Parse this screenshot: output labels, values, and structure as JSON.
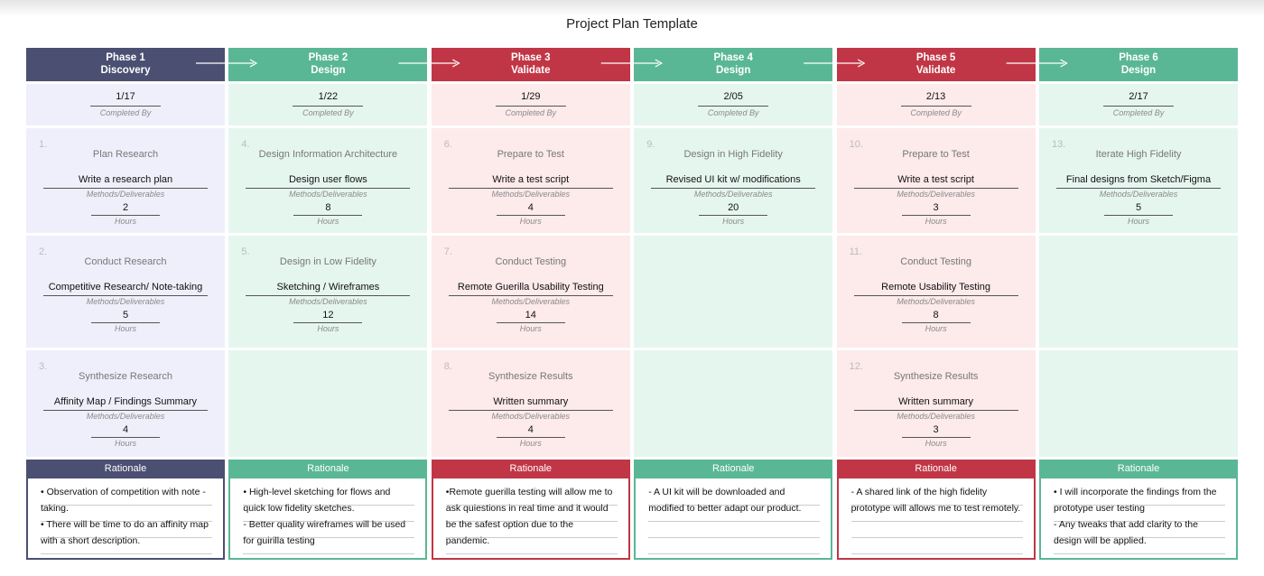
{
  "title": "Project Plan Template",
  "phases": [
    {
      "title": "Phase 1",
      "subtitle": "Discovery",
      "date": "1/17",
      "date_label": "Completed By",
      "tasks": [
        {
          "number": "1.",
          "name": "Plan Research",
          "deliverable": "Write a research plan",
          "deliverable_label": "Methods/Deliverables",
          "hours": 2,
          "hours_label": "Hours"
        },
        {
          "number": "2.",
          "name": "Conduct Research",
          "deliverable": "Competitive Research/ Note-taking",
          "deliverable_label": "Methods/Deliverables",
          "hours": 5,
          "hours_label": "Hours"
        },
        {
          "number": "3.",
          "name": "Synthesize Research",
          "deliverable": "Affinity Map / Findings Summary",
          "deliverable_label": "Methods/Deliverables",
          "hours": 4,
          "hours_label": "Hours"
        }
      ],
      "rationale_title": "Rationale",
      "rationale": [
        "• Observation of competition with note - taking.",
        "• There will be time to do an affinity map with a short description."
      ]
    },
    {
      "title": "Phase 2",
      "subtitle": "Design",
      "date": "1/22",
      "date_label": "Completed By",
      "tasks": [
        {
          "number": "4.",
          "name": "Design Information Architecture",
          "deliverable": "Design user flows",
          "deliverable_label": "Methods/Deliverables",
          "hours": 8,
          "hours_label": "Hours"
        },
        {
          "number": "5.",
          "name": "Design in Low Fidelity",
          "deliverable": "Sketching / Wireframes",
          "deliverable_label": "Methods/Deliverables",
          "hours": 12,
          "hours_label": "Hours"
        }
      ],
      "rationale_title": "Rationale",
      "rationale": [
        "• High-level sketching for flows and quick low fidelity sketches.",
        "- Better quality wireframes will be used for guirilla testing"
      ]
    },
    {
      "title": "Phase 3",
      "subtitle": "Validate",
      "date": "1/29",
      "date_label": "Completed By",
      "tasks": [
        {
          "number": "6.",
          "name": "Prepare to Test",
          "deliverable": "Write a test script",
          "deliverable_label": "Methods/Deliverables",
          "hours": 4,
          "hours_label": "Hours"
        },
        {
          "number": "7.",
          "name": "Conduct Testing",
          "deliverable": "Remote Guerilla Usability Testing",
          "deliverable_label": "Methods/Deliverables",
          "hours": 14,
          "hours_label": "Hours"
        },
        {
          "number": "8.",
          "name": "Synthesize Results",
          "deliverable": "Written summary",
          "deliverable_label": "Methods/Deliverables",
          "hours": 4,
          "hours_label": "Hours"
        }
      ],
      "rationale_title": "Rationale",
      "rationale": [
        "•Remote guerilla testing will allow me to ask quiestions in real time and it would be the safest option due to the pandemic."
      ]
    },
    {
      "title": "Phase 4",
      "subtitle": "Design",
      "date": "2/05",
      "date_label": "Completed By",
      "tasks": [
        {
          "number": "9.",
          "name": "Design in High Fidelity",
          "deliverable": "Revised UI kit w/ modifications",
          "deliverable_label": "Methods/Deliverables",
          "hours": 20,
          "hours_label": "Hours"
        }
      ],
      "rationale_title": "Rationale",
      "rationale": [
        "- A UI kit will be downloaded and modified to better adapt our product."
      ]
    },
    {
      "title": "Phase 5",
      "subtitle": "Validate",
      "date": "2/13",
      "date_label": "Completed By",
      "tasks": [
        {
          "number": "10.",
          "name": "Prepare to Test",
          "deliverable": "Write a test script",
          "deliverable_label": "Methods/Deliverables",
          "hours": 3,
          "hours_label": "Hours"
        },
        {
          "number": "11.",
          "name": "Conduct Testing",
          "deliverable": "Remote Usability Testing",
          "deliverable_label": "Methods/Deliverables",
          "hours": 8,
          "hours_label": "Hours"
        },
        {
          "number": "12.",
          "name": "Synthesize Results",
          "deliverable": "Written summary",
          "deliverable_label": "Methods/Deliverables",
          "hours": 3,
          "hours_label": "Hours"
        }
      ],
      "rationale_title": "Rationale",
      "rationale": [
        "- A shared link of the high fidelity prototype will allows me to test remotely."
      ]
    },
    {
      "title": "Phase 6",
      "subtitle": "Design",
      "date": "2/17",
      "date_label": "Completed By",
      "tasks": [
        {
          "number": "13.",
          "name": "Iterate High Fidelity",
          "deliverable": "Final designs from Sketch/Figma",
          "deliverable_label": "Methods/Deliverables",
          "hours": 5,
          "hours_label": "Hours"
        }
      ],
      "rationale_title": "Rationale",
      "rationale": [
        "• I will incorporate the findings from the prototype user testing",
        "- Any tweaks that add clarity to the design will be applied."
      ]
    }
  ]
}
